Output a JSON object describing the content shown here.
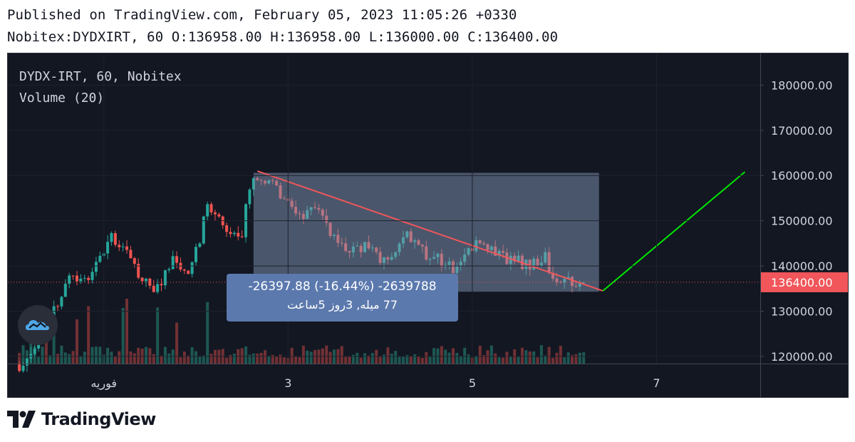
{
  "header": {
    "published": "Published on TradingView.com, February 05, 2023 11:05:26 +0330",
    "ohlc": "Nobitex:DYDXIRT, 60 O:136958.00 H:136958.00 L:136000.00 C:136400.00"
  },
  "legend": {
    "symbol": "DYDX-IRT, 60, Nobitex",
    "volume": "Volume (20)"
  },
  "measure": {
    "line1": "-26397.88 (-16.44%) -2639788",
    "line2": "77 میله, 3روز 5ساعت"
  },
  "footer": {
    "brand": "TradingView"
  },
  "colors": {
    "background": "#131722",
    "up": "#26a69a",
    "down": "#ef5350",
    "projection": "#00e600",
    "measure_fill": "#5b79ad",
    "price_label": "#f0565a"
  },
  "icons": {
    "badge": "tradingview-cloud-icon",
    "footer": "tradingview-logo-icon"
  },
  "chart_data": {
    "type": "candlestick",
    "symbol": "DYDX-IRT",
    "interval": "60",
    "exchange": "Nobitex",
    "last_price": 136400.0,
    "last_price_label": "136400.00",
    "y_ticks": [
      120000,
      130000,
      140000,
      150000,
      160000,
      170000,
      180000
    ],
    "y_tick_labels": [
      "120000.00",
      "130000.00",
      "140000.00",
      "150000.00",
      "160000.00",
      "170000.00",
      "180000.00"
    ],
    "ylim": [
      111000,
      187000
    ],
    "x_ticks": [
      {
        "label": "فوریه",
        "bar": 16
      },
      {
        "label": "3",
        "bar": 64
      },
      {
        "label": "5",
        "bar": 112
      },
      {
        "label": "7",
        "bar": 160
      }
    ],
    "x_range_bars": [
      -9,
      187
    ],
    "anchors": [
      {
        "bar": -6,
        "close": 118000
      },
      {
        "bar": 1,
        "close": 126000
      },
      {
        "bar": 4,
        "close": 132000
      },
      {
        "bar": 7,
        "close": 137000
      },
      {
        "bar": 12,
        "close": 137500
      },
      {
        "bar": 18,
        "close": 146000
      },
      {
        "bar": 23,
        "close": 143000
      },
      {
        "bar": 26,
        "close": 136000
      },
      {
        "bar": 30,
        "close": 135500
      },
      {
        "bar": 34,
        "close": 141000
      },
      {
        "bar": 38,
        "close": 137000
      },
      {
        "bar": 41,
        "close": 146000
      },
      {
        "bar": 43,
        "close": 154000
      },
      {
        "bar": 46,
        "close": 150000
      },
      {
        "bar": 49,
        "close": 146000
      },
      {
        "bar": 52,
        "close": 147000
      },
      {
        "bar": 54,
        "close": 158000
      },
      {
        "bar": 56,
        "close": 160000
      },
      {
        "bar": 60,
        "close": 157500
      },
      {
        "bar": 64,
        "close": 154000
      },
      {
        "bar": 68,
        "close": 151000
      },
      {
        "bar": 72,
        "close": 153500
      },
      {
        "bar": 75,
        "close": 147500
      },
      {
        "bar": 80,
        "close": 143000
      },
      {
        "bar": 84,
        "close": 144000
      },
      {
        "bar": 88,
        "close": 141500
      },
      {
        "bar": 92,
        "close": 144000
      },
      {
        "bar": 95,
        "close": 147000
      },
      {
        "bar": 99,
        "close": 143000
      },
      {
        "bar": 103,
        "close": 141500
      },
      {
        "bar": 107,
        "close": 139500
      },
      {
        "bar": 111,
        "close": 144000
      },
      {
        "bar": 114,
        "close": 145500
      },
      {
        "bar": 118,
        "close": 142500
      },
      {
        "bar": 122,
        "close": 141500
      },
      {
        "bar": 127,
        "close": 140000
      },
      {
        "bar": 131,
        "close": 142000
      },
      {
        "bar": 133,
        "close": 137000
      },
      {
        "bar": 135,
        "close": 136000
      },
      {
        "bar": 138,
        "close": 136600
      },
      {
        "bar": 141,
        "close": 136400
      }
    ],
    "trendline": {
      "from": {
        "bar": 56,
        "price": 161000
      },
      "to": {
        "bar": 146,
        "price": 134500
      }
    },
    "projection": {
      "from": {
        "bar": 146,
        "price": 134500
      },
      "to": {
        "bar": 183,
        "price": 160800
      }
    },
    "measure_range": {
      "from_bar": 55,
      "to_bar": 145,
      "top": 160600,
      "bottom": 134300
    }
  }
}
